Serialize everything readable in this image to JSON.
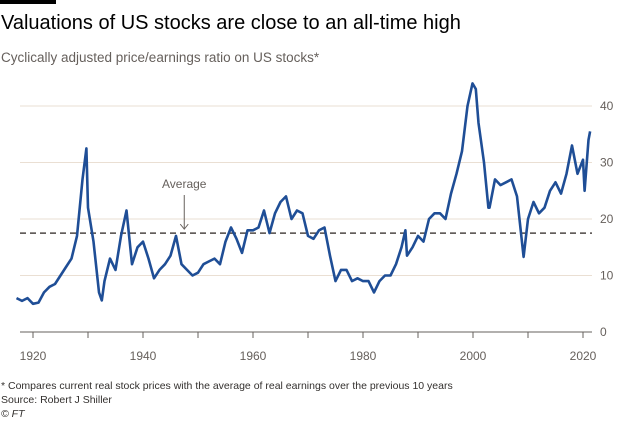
{
  "title": "Valuations of US stocks are close to an all-time high",
  "subtitle": "Cyclically adjusted price/earnings ratio on US stocks*",
  "footnote": "* Compares current real stock prices with the average of real earnings over the previous 10 years",
  "source": "Source: Robert J Shiller",
  "copyright": "© FT",
  "chart_data": {
    "type": "line",
    "xlim": [
      1917,
      2021.5
    ],
    "ylim": [
      0,
      45
    ],
    "x_ticks": [
      1920,
      1940,
      1960,
      1980,
      2000,
      2020
    ],
    "y_ticks": [
      0,
      10,
      20,
      30,
      40
    ],
    "grid": true,
    "y_axis_side": "right",
    "line_color": "#1f4e96",
    "average": {
      "label": "Average",
      "value": 17.5,
      "annotation_x": 1947.5
    },
    "series": [
      {
        "x": [
          1917,
          1918,
          1919,
          1920,
          1921,
          1922,
          1923,
          1924,
          1925,
          1926,
          1927,
          1928,
          1929,
          1929.7,
          1930,
          1931,
          1932,
          1932.5,
          1933,
          1934,
          1935,
          1936,
          1937,
          1938,
          1939,
          1940,
          1941,
          1942,
          1943,
          1944,
          1945,
          1946,
          1947,
          1948,
          1949,
          1950,
          1951,
          1952,
          1953,
          1954,
          1955,
          1956,
          1957,
          1958,
          1959,
          1960,
          1961,
          1962,
          1963,
          1964,
          1965,
          1966,
          1967,
          1968,
          1969,
          1970,
          1971,
          1972,
          1973,
          1974,
          1975,
          1976,
          1977,
          1978,
          1979,
          1980,
          1981,
          1982,
          1983,
          1984,
          1985,
          1986,
          1987,
          1987.7,
          1988,
          1989,
          1990,
          1991,
          1992,
          1993,
          1994,
          1995,
          1996,
          1997,
          1998,
          1999,
          1999.9,
          2000.5,
          2001,
          2002,
          2002.8,
          2003,
          2004,
          2005,
          2006,
          2007,
          2008,
          2009.2,
          2010,
          2011,
          2012,
          2013,
          2014,
          2015,
          2016,
          2017,
          2018,
          2019,
          2020,
          2020.3,
          2021,
          2021.3
        ],
        "y": [
          6,
          5.5,
          6,
          5,
          5.2,
          7,
          8,
          8.5,
          10,
          11.5,
          13,
          17,
          27,
          32.5,
          22,
          16,
          7,
          5.6,
          9,
          13,
          11,
          17,
          21.5,
          12,
          15,
          16,
          13,
          9.5,
          11,
          12,
          13.5,
          17,
          12,
          11,
          10,
          10.5,
          12,
          12.5,
          13,
          12,
          16,
          18.5,
          16.5,
          14,
          18,
          18,
          18.5,
          21.5,
          17.5,
          21,
          23,
          24,
          20,
          21.5,
          21,
          17,
          16.5,
          18,
          18.5,
          13.5,
          9,
          11,
          11,
          9,
          9.5,
          9,
          9,
          7,
          9,
          10,
          10,
          12,
          15,
          18,
          13.5,
          15,
          17,
          16,
          20,
          21,
          21,
          20,
          24.5,
          28,
          32,
          40,
          44,
          43,
          37,
          30,
          22,
          22,
          27,
          26,
          26.5,
          27,
          24,
          13.3,
          20,
          23,
          21,
          22,
          25,
          26.5,
          24.5,
          28,
          33,
          28,
          30.5,
          25,
          34,
          35.5
        ]
      }
    ]
  }
}
